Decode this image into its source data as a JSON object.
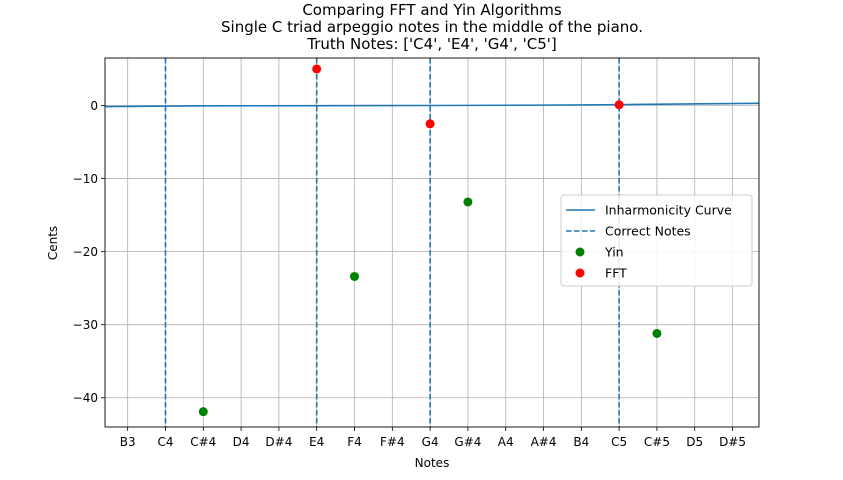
{
  "chart_data": {
    "type": "scatter",
    "title": "Comparing FFT and Yin Algorithms",
    "subtitle": "Single C triad arpeggio notes in the middle of the piano.",
    "subtitle2": "Truth Notes: ['C4', 'E4', 'G4', 'C5']",
    "xlabel": "Notes",
    "ylabel": "Cents",
    "categories": [
      "B3",
      "C4",
      "C#4",
      "D4",
      "D#4",
      "E4",
      "F4",
      "F#4",
      "G4",
      "G#4",
      "A4",
      "A#4",
      "B4",
      "C5",
      "C#5",
      "D5",
      "D#5"
    ],
    "xlim": [
      -0.6,
      16.7
    ],
    "ylim": [
      -44,
      6.5
    ],
    "yticks": [
      0,
      -10,
      -20,
      -30,
      -40
    ],
    "ytick_labels": [
      "0",
      "−10",
      "−20",
      "−30",
      "−40"
    ],
    "grid": true,
    "legend_position": "center-right",
    "inharmonicity_curve": {
      "name": "Inharmonicity Curve",
      "color": "#1f77b4",
      "x": [
        -0.6,
        2,
        5,
        8,
        11,
        13,
        16.7
      ],
      "y": [
        -0.15,
        -0.05,
        -0.02,
        0,
        0.05,
        0.12,
        0.3
      ]
    },
    "correct_notes": {
      "name": "Correct Notes",
      "color": "#1f77b4",
      "x": [
        "C4",
        "E4",
        "G4",
        "C5"
      ]
    },
    "series": [
      {
        "name": "Yin",
        "color": "#008000",
        "x": [
          "C#4",
          "F4",
          "G#4",
          "C#5"
        ],
        "values": [
          -41.9,
          -23.4,
          -13.2,
          -31.2
        ]
      },
      {
        "name": "FFT",
        "color": "#ff0000",
        "x": [
          "E4",
          "G4",
          "C5"
        ],
        "values": [
          5.0,
          -2.5,
          0.1
        ]
      }
    ]
  }
}
